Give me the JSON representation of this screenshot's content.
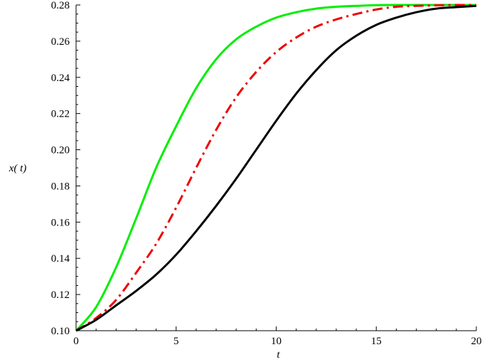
{
  "chart_data": {
    "type": "line",
    "title": "",
    "xlabel": "t",
    "ylabel": "x( t)",
    "xlim": [
      0,
      20
    ],
    "ylim": [
      0.1,
      0.28
    ],
    "grid": false,
    "legend": "none",
    "x_ticks": [
      "0",
      "5",
      "10",
      "15",
      "20"
    ],
    "y_ticks": [
      "0.10",
      "0.12",
      "0.14",
      "0.16",
      "0.18",
      "0.20",
      "0.22",
      "0.24",
      "0.26",
      "0.28"
    ],
    "x": [
      0,
      1,
      2,
      3,
      4,
      5,
      6,
      7,
      8,
      9,
      10,
      11,
      12,
      13,
      14,
      15,
      16,
      17,
      18,
      19,
      20
    ],
    "series": [
      {
        "color": "#00ee00",
        "style": "solid",
        "values": [
          0.1,
          0.113,
          0.135,
          0.162,
          0.19,
          0.213,
          0.234,
          0.25,
          0.261,
          0.268,
          0.273,
          0.276,
          0.278,
          0.279,
          0.2795,
          0.2799,
          0.28,
          0.28,
          0.28,
          0.28,
          0.28
        ]
      },
      {
        "color": "#ee0000",
        "style": "dashdot",
        "values": [
          0.1,
          0.107,
          0.117,
          0.132,
          0.148,
          0.168,
          0.19,
          0.211,
          0.229,
          0.243,
          0.254,
          0.262,
          0.268,
          0.272,
          0.275,
          0.2775,
          0.279,
          0.2795,
          0.2798,
          0.28,
          0.28
        ]
      },
      {
        "color": "#000000",
        "style": "solid",
        "values": [
          0.1,
          0.106,
          0.114,
          0.122,
          0.131,
          0.142,
          0.155,
          0.169,
          0.184,
          0.2,
          0.216,
          0.231,
          0.244,
          0.255,
          0.263,
          0.269,
          0.273,
          0.276,
          0.278,
          0.2788,
          0.2795
        ]
      }
    ]
  }
}
